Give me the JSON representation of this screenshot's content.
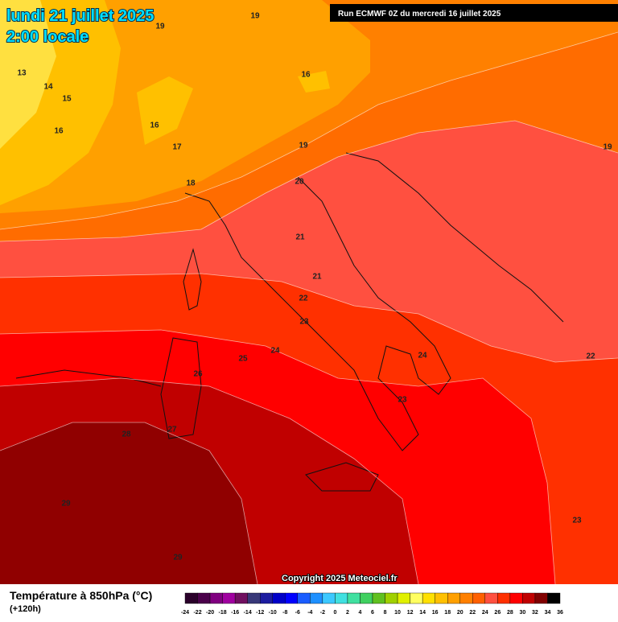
{
  "header": {
    "title": "lundi 21 juillet 2025",
    "time": "2:00 locale",
    "run": "Run ECMWF 0Z du mercredi 16 juillet 2025"
  },
  "map": {
    "isotherm_labels": [
      19,
      19,
      13,
      14,
      15,
      16,
      16,
      16,
      17,
      18,
      19,
      20,
      21,
      21,
      22,
      23,
      24,
      25,
      26,
      27,
      28,
      29,
      29,
      24,
      23,
      22,
      23,
      19
    ]
  },
  "footer": {
    "copyright": "Copyright 2025 Meteociel.fr",
    "legend_title": "Température à 850hPa (°C)",
    "lead_time": "(+120h)",
    "colorbar": {
      "ticks": [
        -24,
        -22,
        -20,
        -18,
        -16,
        -14,
        -12,
        -10,
        -8,
        -6,
        -4,
        -2,
        0,
        2,
        4,
        6,
        8,
        10,
        12,
        14,
        16,
        18,
        20,
        22,
        24,
        26,
        28,
        30,
        32,
        34,
        36
      ],
      "colors": [
        "#2a002a",
        "#4a004a",
        "#800080",
        "#a000a0",
        "#701060",
        "#383878",
        "#1c1ca0",
        "#0000c8",
        "#0000ff",
        "#1a5cff",
        "#1e90ff",
        "#3cc8ff",
        "#40e0e0",
        "#40e0a0",
        "#40d060",
        "#60c020",
        "#a0d000",
        "#e0f000",
        "#ffff60",
        "#ffe000",
        "#ffc000",
        "#ffa000",
        "#ff8000",
        "#ff6000",
        "#ff5040",
        "#ff3000",
        "#ff0000",
        "#c00000",
        "#800000",
        "#000000"
      ]
    }
  }
}
